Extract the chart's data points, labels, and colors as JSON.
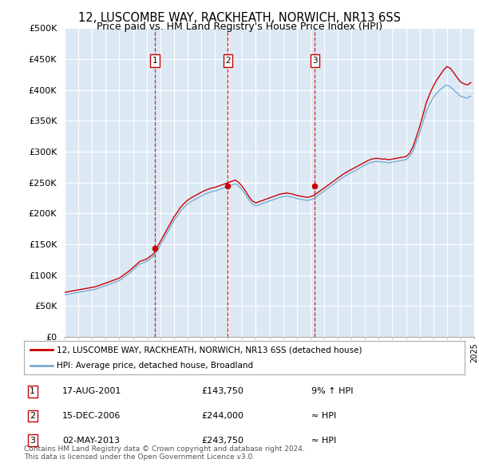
{
  "title": "12, LUSCOMBE WAY, RACKHEATH, NORWICH, NR13 6SS",
  "subtitle": "Price paid vs. HM Land Registry's House Price Index (HPI)",
  "ylim": [
    0,
    500000
  ],
  "yticks": [
    0,
    50000,
    100000,
    150000,
    200000,
    250000,
    300000,
    350000,
    400000,
    450000,
    500000
  ],
  "ytick_labels": [
    "£0",
    "£50K",
    "£100K",
    "£150K",
    "£200K",
    "£250K",
    "£300K",
    "£350K",
    "£400K",
    "£450K",
    "£500K"
  ],
  "plot_bg_color": "#dce9f5",
  "grid_color": "#ffffff",
  "sale_prices": [
    143750,
    244000,
    243750
  ],
  "sale_years": [
    2001.625,
    2006.958,
    2013.333
  ],
  "sale_labels": [
    "1",
    "2",
    "3"
  ],
  "legend_line1": "12, LUSCOMBE WAY, RACKHEATH, NORWICH, NR13 6SS (detached house)",
  "legend_line2": "HPI: Average price, detached house, Broadland",
  "table_data": [
    [
      "1",
      "17-AUG-2001",
      "£143,750",
      "9% ↑ HPI"
    ],
    [
      "2",
      "15-DEC-2006",
      "£244,000",
      "≈ HPI"
    ],
    [
      "3",
      "02-MAY-2013",
      "£243,750",
      "≈ HPI"
    ]
  ],
  "footer": "Contains HM Land Registry data © Crown copyright and database right 2024.\nThis data is licensed under the Open Government Licence v3.0.",
  "red_color": "#cc0000",
  "blue_color": "#7aadd4",
  "years_data": [
    1995.0,
    1995.25,
    1995.5,
    1995.75,
    1996.0,
    1996.25,
    1996.5,
    1996.75,
    1997.0,
    1997.25,
    1997.5,
    1997.75,
    1998.0,
    1998.25,
    1998.5,
    1998.75,
    1999.0,
    1999.25,
    1999.5,
    1999.75,
    2000.0,
    2000.25,
    2000.5,
    2000.75,
    2001.0,
    2001.25,
    2001.5,
    2001.75,
    2002.0,
    2002.25,
    2002.5,
    2002.75,
    2003.0,
    2003.25,
    2003.5,
    2003.75,
    2004.0,
    2004.25,
    2004.5,
    2004.75,
    2005.0,
    2005.25,
    2005.5,
    2005.75,
    2006.0,
    2006.25,
    2006.5,
    2006.75,
    2007.0,
    2007.25,
    2007.5,
    2007.75,
    2008.0,
    2008.25,
    2008.5,
    2008.75,
    2009.0,
    2009.25,
    2009.5,
    2009.75,
    2010.0,
    2010.25,
    2010.5,
    2010.75,
    2011.0,
    2011.25,
    2011.5,
    2011.75,
    2012.0,
    2012.25,
    2012.5,
    2012.75,
    2013.0,
    2013.25,
    2013.5,
    2013.75,
    2014.0,
    2014.25,
    2014.5,
    2014.75,
    2015.0,
    2015.25,
    2015.5,
    2015.75,
    2016.0,
    2016.25,
    2016.5,
    2016.75,
    2017.0,
    2017.25,
    2017.5,
    2017.75,
    2018.0,
    2018.25,
    2018.5,
    2018.75,
    2019.0,
    2019.25,
    2019.5,
    2019.75,
    2020.0,
    2020.25,
    2020.5,
    2020.75,
    2021.0,
    2021.25,
    2021.5,
    2021.75,
    2022.0,
    2022.25,
    2022.5,
    2022.75,
    2023.0,
    2023.25,
    2023.5,
    2023.75,
    2024.0,
    2024.25,
    2024.5,
    2024.75
  ],
  "hpi_values": [
    68000,
    69000,
    70000,
    71000,
    72000,
    73000,
    74000,
    75000,
    76000,
    77000,
    79000,
    81000,
    83000,
    85000,
    87000,
    89000,
    91000,
    95000,
    99000,
    103000,
    108000,
    113000,
    118000,
    120000,
    122000,
    126000,
    130000,
    138000,
    148000,
    158000,
    168000,
    178000,
    188000,
    196000,
    204000,
    210000,
    215000,
    219000,
    222000,
    225000,
    228000,
    231000,
    233000,
    235000,
    236000,
    238000,
    240000,
    242000,
    244000,
    246000,
    248000,
    244000,
    238000,
    230000,
    222000,
    215000,
    212000,
    214000,
    216000,
    218000,
    220000,
    222000,
    224000,
    226000,
    227000,
    228000,
    227000,
    226000,
    224000,
    223000,
    222000,
    221000,
    222000,
    224000,
    228000,
    232000,
    236000,
    240000,
    244000,
    248000,
    252000,
    256000,
    260000,
    263000,
    266000,
    269000,
    272000,
    275000,
    278000,
    281000,
    283000,
    284000,
    284000,
    283000,
    283000,
    282000,
    283000,
    284000,
    285000,
    286000,
    287000,
    292000,
    300000,
    315000,
    330000,
    348000,
    366000,
    378000,
    388000,
    395000,
    400000,
    405000,
    408000,
    405000,
    400000,
    395000,
    390000,
    388000,
    387000,
    390000
  ],
  "red_values": [
    72000,
    73000,
    74000,
    75000,
    76000,
    77000,
    78000,
    79000,
    80000,
    81000,
    83000,
    85000,
    87000,
    89000,
    91000,
    93000,
    95000,
    99000,
    103000,
    107000,
    112000,
    117000,
    122000,
    124000,
    126000,
    130000,
    134000,
    144000,
    154000,
    164000,
    174000,
    184000,
    194000,
    202000,
    210000,
    216000,
    221000,
    225000,
    228000,
    231000,
    234000,
    237000,
    239000,
    241000,
    242000,
    244000,
    246000,
    248000,
    250000,
    252000,
    254000,
    250000,
    244000,
    236000,
    227000,
    220000,
    217000,
    219000,
    221000,
    223000,
    225000,
    227000,
    229000,
    231000,
    232000,
    233000,
    232000,
    231000,
    229000,
    228000,
    227000,
    226000,
    227000,
    229000,
    233000,
    237000,
    241000,
    245000,
    249000,
    253000,
    257000,
    261000,
    265000,
    268000,
    271000,
    274000,
    277000,
    280000,
    283000,
    286000,
    288000,
    289000,
    289000,
    288000,
    288000,
    287000,
    288000,
    289000,
    290000,
    291000,
    292000,
    297000,
    307000,
    323000,
    340000,
    360000,
    380000,
    394000,
    406000,
    416000,
    424000,
    432000,
    438000,
    435000,
    428000,
    420000,
    413000,
    410000,
    408000,
    412000
  ]
}
